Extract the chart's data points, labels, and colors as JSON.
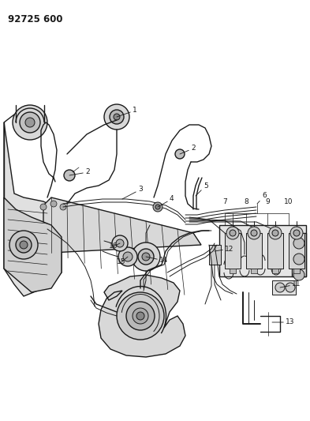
{
  "title": "92725 600",
  "bg_color": "#ffffff",
  "line_color": "#1a1a1a",
  "fig_width": 3.93,
  "fig_height": 5.33,
  "dpi": 100,
  "xlim": [
    0,
    393
  ],
  "ylim": [
    0,
    533
  ]
}
